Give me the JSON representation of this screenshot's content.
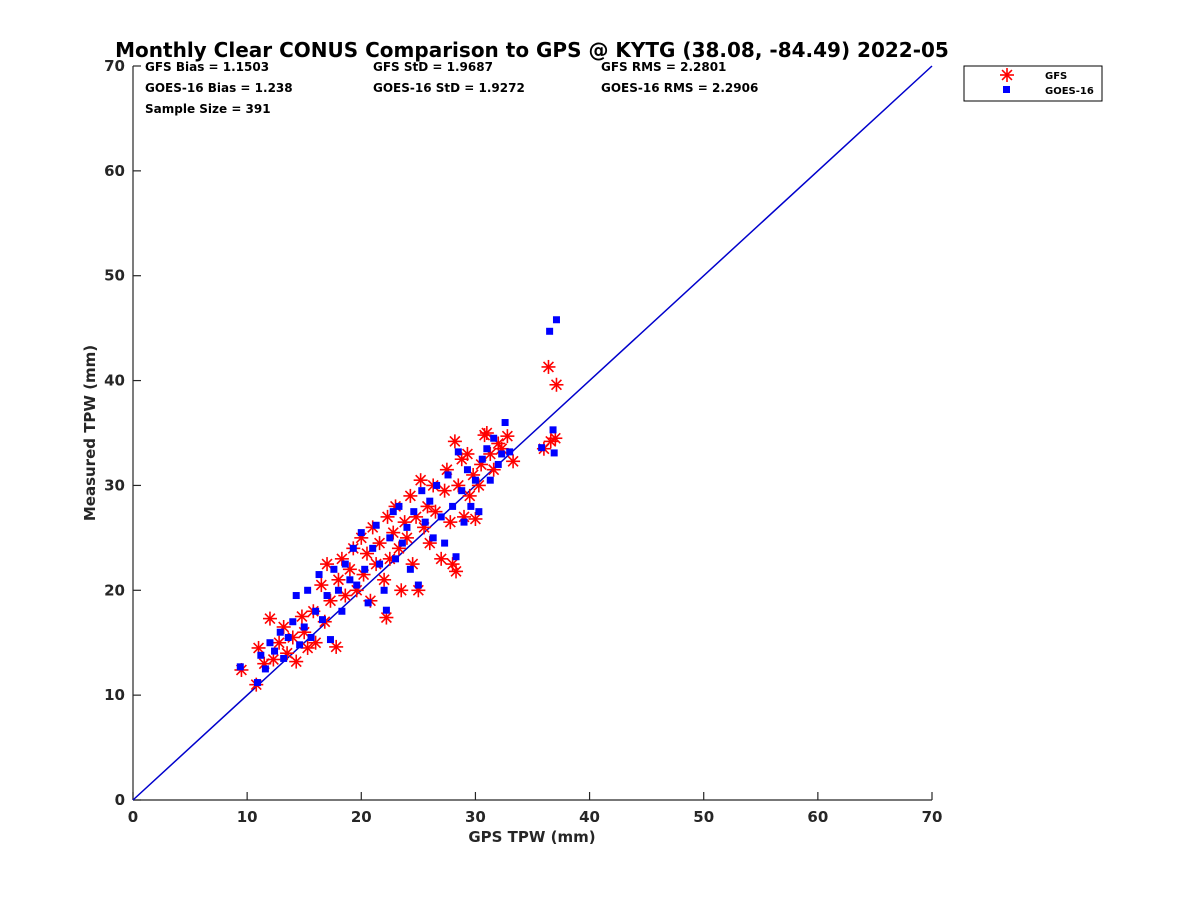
{
  "chart_data": {
    "type": "scatter",
    "title": "Monthly Clear CONUS Comparison to GPS @ KYTG (38.08, -84.49) 2022-05",
    "xlabel": "GPS TPW (mm)",
    "ylabel": "Measured TPW (mm)",
    "xlim": [
      0,
      70
    ],
    "ylim": [
      0,
      70
    ],
    "xticks": [
      "0",
      "10",
      "20",
      "30",
      "40",
      "50",
      "60",
      "70"
    ],
    "yticks": [
      "0",
      "10",
      "20",
      "30",
      "40",
      "50",
      "60",
      "70"
    ],
    "grid": false,
    "legend_placement": "outside top-right",
    "stats": [
      "GFS Bias = 1.1503",
      "GFS StD = 1.9687",
      "GFS RMS = 2.2801",
      "GOES-16 Bias = 1.238",
      "GOES-16 StD = 1.9272",
      "GOES-16 RMS = 2.2906",
      "Sample Size = 391"
    ],
    "reference_line": {
      "x": [
        0,
        70
      ],
      "y": [
        0,
        70
      ],
      "color": "#0000cc"
    },
    "series": [
      {
        "name": "GFS",
        "marker": "asterisk",
        "color": "#ff0000",
        "points": [
          [
            9.5,
            12.4
          ],
          [
            10.8,
            11.0
          ],
          [
            11.0,
            14.5
          ],
          [
            11.5,
            13.0
          ],
          [
            12.0,
            17.3
          ],
          [
            12.3,
            13.4
          ],
          [
            12.8,
            15.0
          ],
          [
            13.2,
            16.5
          ],
          [
            13.5,
            14.0
          ],
          [
            14.0,
            15.5
          ],
          [
            14.3,
            13.2
          ],
          [
            14.8,
            17.5
          ],
          [
            15.0,
            16.0
          ],
          [
            15.3,
            14.5
          ],
          [
            15.8,
            18.0
          ],
          [
            16.0,
            15.0
          ],
          [
            16.5,
            20.5
          ],
          [
            16.8,
            17.0
          ],
          [
            17.0,
            22.5
          ],
          [
            17.3,
            19.0
          ],
          [
            17.8,
            14.6
          ],
          [
            18.0,
            21.0
          ],
          [
            18.3,
            23.0
          ],
          [
            18.6,
            19.5
          ],
          [
            19.0,
            22.0
          ],
          [
            19.3,
            24.0
          ],
          [
            19.6,
            20.0
          ],
          [
            20.0,
            25.0
          ],
          [
            20.2,
            21.5
          ],
          [
            20.5,
            23.5
          ],
          [
            20.8,
            19.0
          ],
          [
            21.0,
            26.0
          ],
          [
            21.3,
            22.5
          ],
          [
            21.6,
            24.5
          ],
          [
            22.0,
            21.0
          ],
          [
            22.2,
            17.4
          ],
          [
            22.3,
            27.0
          ],
          [
            22.5,
            23.0
          ],
          [
            22.8,
            25.5
          ],
          [
            23.0,
            28.0
          ],
          [
            23.3,
            24.0
          ],
          [
            23.5,
            20.0
          ],
          [
            23.8,
            26.5
          ],
          [
            24.0,
            25.0
          ],
          [
            24.3,
            29.0
          ],
          [
            24.5,
            22.5
          ],
          [
            24.8,
            27.0
          ],
          [
            25.0,
            20.0
          ],
          [
            25.2,
            30.5
          ],
          [
            25.5,
            26.0
          ],
          [
            25.8,
            28.0
          ],
          [
            26.0,
            24.5
          ],
          [
            26.3,
            30.0
          ],
          [
            26.5,
            27.5
          ],
          [
            27.0,
            23.0
          ],
          [
            27.3,
            29.5
          ],
          [
            27.5,
            31.5
          ],
          [
            27.8,
            26.5
          ],
          [
            28.0,
            22.5
          ],
          [
            28.2,
            34.2
          ],
          [
            28.3,
            21.8
          ],
          [
            28.5,
            30.0
          ],
          [
            28.8,
            32.5
          ],
          [
            29.0,
            27.0
          ],
          [
            29.3,
            33.0
          ],
          [
            29.5,
            29.0
          ],
          [
            29.8,
            31.0
          ],
          [
            30.0,
            26.8
          ],
          [
            30.3,
            30.0
          ],
          [
            30.5,
            32.0
          ],
          [
            30.8,
            34.8
          ],
          [
            31.0,
            35.0
          ],
          [
            31.3,
            33.0
          ],
          [
            31.6,
            31.5
          ],
          [
            32.0,
            34.0
          ],
          [
            32.3,
            33.5
          ],
          [
            32.8,
            34.7
          ],
          [
            33.3,
            32.3
          ],
          [
            36.0,
            33.5
          ],
          [
            36.4,
            41.3
          ],
          [
            36.6,
            34.2
          ],
          [
            37.0,
            34.5
          ],
          [
            37.1,
            39.6
          ]
        ]
      },
      {
        "name": "GOES-16",
        "marker": "square",
        "color": "#0000ff",
        "points": [
          [
            9.4,
            12.7
          ],
          [
            10.9,
            11.2
          ],
          [
            11.2,
            13.8
          ],
          [
            11.6,
            12.5
          ],
          [
            12.0,
            15.0
          ],
          [
            12.4,
            14.2
          ],
          [
            12.9,
            16.0
          ],
          [
            13.2,
            13.5
          ],
          [
            13.6,
            15.5
          ],
          [
            14.0,
            17.0
          ],
          [
            14.3,
            19.5
          ],
          [
            14.6,
            14.8
          ],
          [
            15.0,
            16.5
          ],
          [
            15.3,
            20.0
          ],
          [
            15.6,
            15.5
          ],
          [
            16.0,
            18.0
          ],
          [
            16.3,
            21.5
          ],
          [
            16.6,
            17.2
          ],
          [
            17.0,
            19.5
          ],
          [
            17.3,
            15.3
          ],
          [
            17.6,
            22.0
          ],
          [
            18.0,
            20.0
          ],
          [
            18.3,
            18.0
          ],
          [
            18.6,
            22.5
          ],
          [
            19.0,
            21.0
          ],
          [
            19.3,
            24.0
          ],
          [
            19.6,
            20.5
          ],
          [
            20.0,
            25.5
          ],
          [
            20.3,
            22.0
          ],
          [
            20.6,
            18.8
          ],
          [
            21.0,
            24.0
          ],
          [
            21.3,
            26.2
          ],
          [
            21.6,
            22.5
          ],
          [
            22.0,
            20.0
          ],
          [
            22.2,
            18.1
          ],
          [
            22.5,
            25.0
          ],
          [
            22.8,
            27.5
          ],
          [
            23.0,
            23.0
          ],
          [
            23.3,
            28.0
          ],
          [
            23.6,
            24.5
          ],
          [
            24.0,
            26.0
          ],
          [
            24.3,
            22.0
          ],
          [
            24.6,
            27.5
          ],
          [
            25.0,
            20.5
          ],
          [
            25.3,
            29.5
          ],
          [
            25.6,
            26.5
          ],
          [
            26.0,
            28.5
          ],
          [
            26.3,
            25.0
          ],
          [
            26.6,
            30.0
          ],
          [
            27.0,
            27.0
          ],
          [
            27.3,
            24.5
          ],
          [
            27.6,
            31.0
          ],
          [
            28.0,
            28.0
          ],
          [
            28.3,
            23.2
          ],
          [
            28.5,
            33.2
          ],
          [
            28.8,
            29.5
          ],
          [
            29.0,
            26.5
          ],
          [
            29.3,
            31.5
          ],
          [
            29.6,
            28.0
          ],
          [
            30.0,
            30.5
          ],
          [
            30.3,
            27.5
          ],
          [
            30.6,
            32.5
          ],
          [
            31.0,
            33.5
          ],
          [
            31.3,
            30.5
          ],
          [
            31.6,
            34.5
          ],
          [
            32.0,
            32.0
          ],
          [
            32.3,
            33.0
          ],
          [
            32.6,
            36.0
          ],
          [
            33.0,
            33.2
          ],
          [
            35.8,
            33.6
          ],
          [
            36.5,
            44.7
          ],
          [
            36.8,
            35.3
          ],
          [
            36.9,
            33.1
          ],
          [
            37.1,
            45.8
          ]
        ]
      }
    ]
  }
}
